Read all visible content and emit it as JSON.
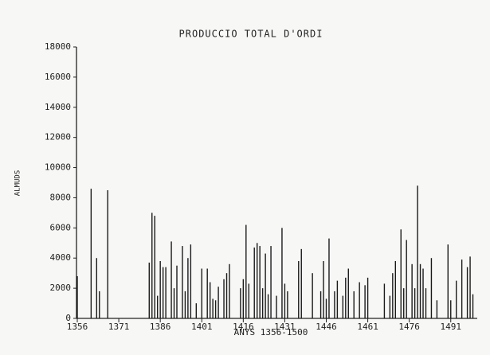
{
  "chart_data": {
    "type": "bar",
    "title": "PRODUCCIO TOTAL D'ORDI",
    "x_label": "ANYS 1356-1500",
    "y_label": "ALMUDS",
    "x": [
      1356,
      1361,
      1363,
      1364,
      1367,
      1382,
      1383,
      1384,
      1385,
      1386,
      1387,
      1388,
      1390,
      1391,
      1392,
      1394,
      1395,
      1396,
      1397,
      1399,
      1401,
      1403,
      1404,
      1405,
      1406,
      1407,
      1409,
      1410,
      1411,
      1415,
      1416,
      1417,
      1418,
      1420,
      1421,
      1422,
      1423,
      1424,
      1425,
      1426,
      1428,
      1430,
      1431,
      1432,
      1436,
      1437,
      1441,
      1444,
      1445,
      1446,
      1447,
      1449,
      1450,
      1452,
      1453,
      1454,
      1456,
      1458,
      1460,
      1461,
      1467,
      1469,
      1470,
      1471,
      1473,
      1474,
      1475,
      1477,
      1478,
      1479,
      1480,
      1481,
      1482,
      1484,
      1486,
      1490,
      1491,
      1493,
      1495,
      1497,
      1498,
      1499
    ],
    "values": [
      2800,
      8600,
      4000,
      1800,
      8500,
      3700,
      7000,
      6800,
      1500,
      3800,
      3400,
      3400,
      5100,
      2000,
      3500,
      4800,
      1800,
      4000,
      4900,
      1000,
      3300,
      3300,
      2400,
      1300,
      1200,
      2100,
      2600,
      3000,
      3600,
      2000,
      2600,
      6200,
      2300,
      4700,
      5000,
      4800,
      2000,
      4300,
      1600,
      4800,
      1500,
      6000,
      2300,
      1800,
      3800,
      4600,
      3000,
      1800,
      3800,
      1300,
      5300,
      1800,
      2500,
      1500,
      2700,
      3300,
      1800,
      2400,
      2200,
      2700,
      2300,
      1500,
      3000,
      3800,
      5900,
      2000,
      5200,
      3600,
      2000,
      8800,
      3600,
      3300,
      2000,
      4000,
      1200,
      4900,
      1200,
      2500,
      3900,
      3400,
      4100,
      1600
    ],
    "color": "#1a1a1a",
    "xlim": [
      1356,
      1500
    ],
    "xticks": [
      1356,
      1371,
      1386,
      1401,
      1416,
      1431,
      1446,
      1461,
      1476,
      1491
    ],
    "ylim": [
      0,
      18000
    ],
    "yticks": [
      0,
      2000,
      4000,
      6000,
      8000,
      10000,
      12000,
      14000,
      16000,
      18000
    ]
  }
}
